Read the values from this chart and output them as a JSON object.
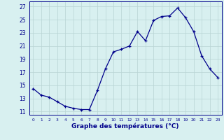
{
  "hours": [
    0,
    1,
    2,
    3,
    4,
    5,
    6,
    7,
    8,
    9,
    10,
    11,
    12,
    13,
    14,
    15,
    16,
    17,
    18,
    19,
    20,
    21,
    22,
    23
  ],
  "temps": [
    14.5,
    13.5,
    13.2,
    12.5,
    11.8,
    11.5,
    11.3,
    11.3,
    14.2,
    17.5,
    20.1,
    20.5,
    21.0,
    23.2,
    21.8,
    24.9,
    25.5,
    25.6,
    26.8,
    25.3,
    23.2,
    19.5,
    17.5,
    16.2
  ],
  "line_color": "#00008B",
  "marker": "+",
  "bg_color": "#D8F0F0",
  "grid_color": "#B8D4D4",
  "axis_color": "#00008B",
  "xlabel": "Graphe des températures (°C)",
  "xlabel_fontsize": 6.5,
  "ylabel_ticks": [
    11,
    13,
    15,
    17,
    19,
    21,
    23,
    25,
    27
  ],
  "ylim": [
    10.5,
    27.8
  ],
  "xlim": [
    -0.5,
    23.5
  ]
}
